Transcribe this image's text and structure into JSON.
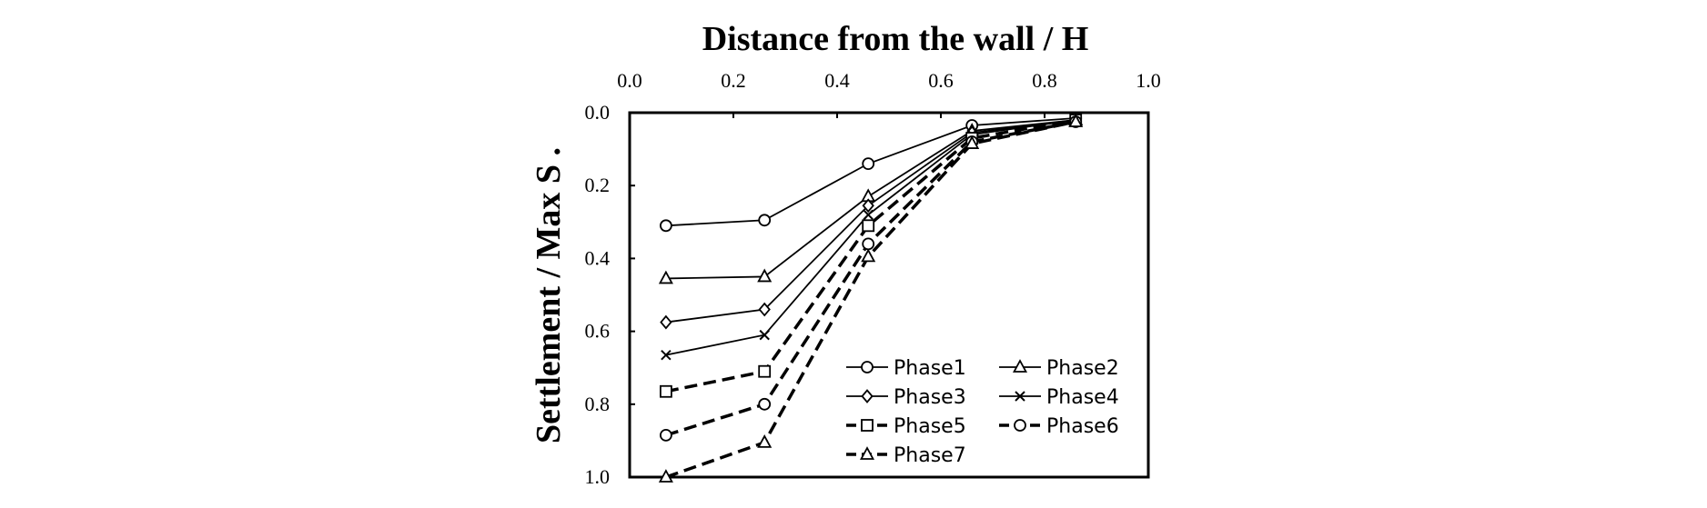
{
  "chart_data": {
    "type": "line",
    "xlabel": "Distance from the wall / H",
    "ylabel": "Settlement / Max S .",
    "xlim": [
      0.0,
      1.0
    ],
    "ylim": [
      0.0,
      1.0
    ],
    "y_inverted": true,
    "x_axis_position": "top",
    "x_ticks": [
      "0.0",
      "0.2",
      "0.4",
      "0.6",
      "0.8",
      "1.0"
    ],
    "y_ticks": [
      "0.0",
      "0.2",
      "0.4",
      "0.6",
      "0.8",
      "1.0"
    ],
    "grid": false,
    "legend_position": "bottom-right",
    "x": [
      0.07,
      0.26,
      0.46,
      0.66,
      0.86
    ],
    "series": [
      {
        "name": "Phase1",
        "marker": "circle",
        "dash": false,
        "values": [
          0.31,
          0.295,
          0.14,
          0.035,
          0.015
        ]
      },
      {
        "name": "Phase2",
        "marker": "triangle",
        "dash": false,
        "values": [
          0.455,
          0.45,
          0.23,
          0.05,
          0.02
        ]
      },
      {
        "name": "Phase3",
        "marker": "diamond",
        "dash": false,
        "values": [
          0.575,
          0.54,
          0.255,
          0.055,
          0.02
        ]
      },
      {
        "name": "Phase4",
        "marker": "x",
        "dash": false,
        "values": [
          0.665,
          0.61,
          0.28,
          0.06,
          0.02
        ]
      },
      {
        "name": "Phase5",
        "marker": "square",
        "dash": true,
        "values": [
          0.765,
          0.71,
          0.31,
          0.07,
          0.02
        ]
      },
      {
        "name": "Phase6",
        "marker": "circle",
        "dash": true,
        "values": [
          0.885,
          0.8,
          0.36,
          0.08,
          0.025
        ]
      },
      {
        "name": "Phase7",
        "marker": "triangle",
        "dash": true,
        "values": [
          1.0,
          0.905,
          0.395,
          0.085,
          0.025
        ]
      }
    ]
  }
}
